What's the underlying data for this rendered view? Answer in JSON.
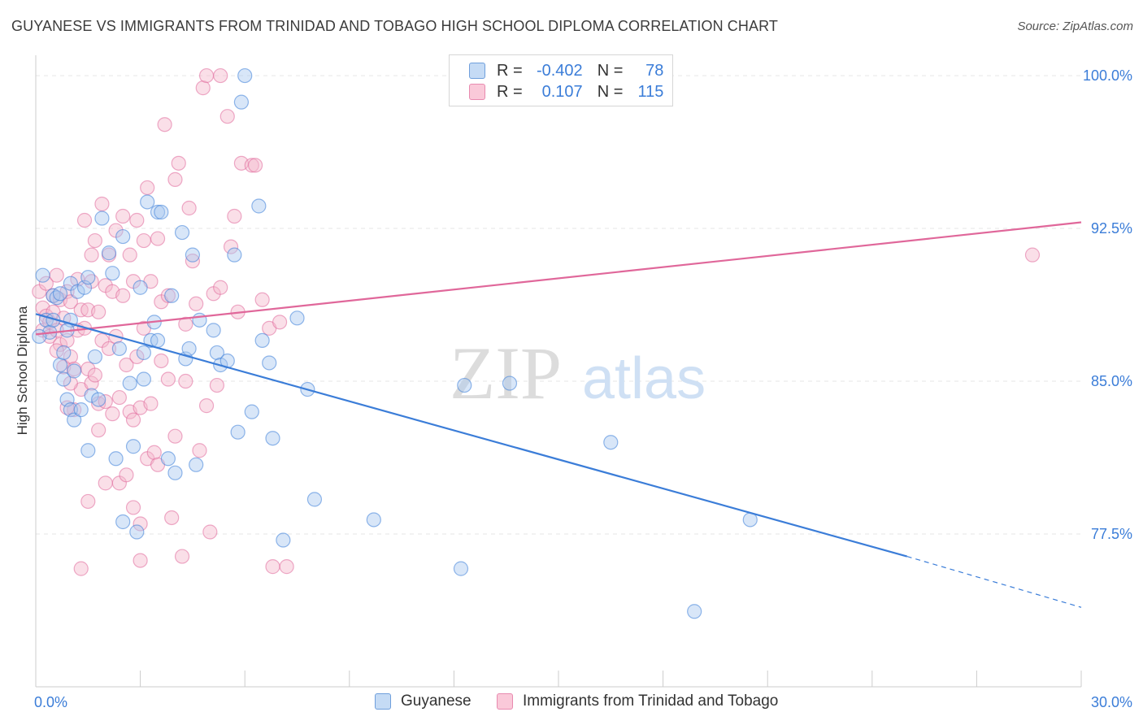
{
  "header": {
    "title": "GUYANESE VS IMMIGRANTS FROM TRINIDAD AND TOBAGO HIGH SCHOOL DIPLOMA CORRELATION CHART",
    "source": "Source: ZipAtlas.com"
  },
  "stats_legend": {
    "rows": [
      {
        "r_label": "R =",
        "r_value": "-0.402",
        "n_label": "N =",
        "n_value": "78",
        "color": "#8fb8e8"
      },
      {
        "r_label": "R =",
        "r_value": "0.107",
        "n_label": "N =",
        "n_value": "115",
        "color": "#f2a6c0"
      }
    ]
  },
  "watermark": {
    "part1": "ZIP",
    "part2": "atlas"
  },
  "chart_data": {
    "type": "scatter",
    "title": "GUYANESE VS IMMIGRANTS FROM TRINIDAD AND TOBAGO HIGH SCHOOL DIPLOMA CORRELATION CHART",
    "xlabel": "",
    "ylabel": "High School Diploma",
    "xlim": [
      0,
      30
    ],
    "ylim": [
      70.0,
      101.0
    ],
    "x_tick_labels": [
      "0.0%",
      "30.0%"
    ],
    "y_ticks": [
      77.5,
      85.0,
      92.5,
      100.0
    ],
    "y_tick_labels": [
      "77.5%",
      "85.0%",
      "92.5%",
      "100.0%"
    ],
    "grid": true,
    "legend_position": "bottom",
    "series": [
      {
        "name": "Guyanese",
        "color": "#3b7dd8",
        "fill": "#a9c8ef",
        "trend": {
          "x": [
            0,
            25
          ],
          "y": [
            88.3,
            76.4
          ],
          "dashed_to": [
            30,
            73.9
          ]
        },
        "points": [
          [
            0.2,
            90.2
          ],
          [
            0.3,
            88.0
          ],
          [
            0.4,
            87.4
          ],
          [
            0.5,
            89.2
          ],
          [
            0.5,
            88.0
          ],
          [
            0.6,
            89.1
          ],
          [
            0.7,
            89.3
          ],
          [
            0.7,
            85.8
          ],
          [
            0.8,
            86.4
          ],
          [
            0.8,
            85.1
          ],
          [
            0.9,
            84.1
          ],
          [
            1.0,
            89.8
          ],
          [
            1.0,
            88.0
          ],
          [
            1.0,
            83.6
          ],
          [
            1.1,
            83.1
          ],
          [
            1.1,
            85.5
          ],
          [
            1.2,
            89.4
          ],
          [
            1.3,
            83.6
          ],
          [
            1.4,
            89.6
          ],
          [
            1.5,
            90.1
          ],
          [
            1.5,
            81.6
          ],
          [
            1.6,
            84.3
          ],
          [
            1.7,
            86.2
          ],
          [
            1.8,
            84.1
          ],
          [
            1.9,
            93.0
          ],
          [
            2.1,
            91.3
          ],
          [
            2.2,
            90.3
          ],
          [
            2.3,
            81.2
          ],
          [
            2.4,
            86.6
          ],
          [
            2.5,
            92.1
          ],
          [
            2.5,
            78.1
          ],
          [
            2.7,
            84.9
          ],
          [
            2.8,
            81.8
          ],
          [
            2.9,
            77.6
          ],
          [
            3.0,
            89.6
          ],
          [
            3.1,
            86.4
          ],
          [
            3.2,
            93.8
          ],
          [
            3.3,
            87.0
          ],
          [
            3.4,
            87.9
          ],
          [
            3.5,
            87.0
          ],
          [
            3.5,
            93.3
          ],
          [
            3.6,
            93.3
          ],
          [
            3.8,
            81.2
          ],
          [
            3.9,
            89.2
          ],
          [
            4.0,
            80.5
          ],
          [
            4.2,
            92.3
          ],
          [
            4.3,
            86.1
          ],
          [
            4.4,
            86.6
          ],
          [
            4.5,
            91.2
          ],
          [
            4.6,
            80.9
          ],
          [
            4.7,
            88.0
          ],
          [
            5.1,
            87.5
          ],
          [
            5.2,
            86.4
          ],
          [
            5.3,
            85.8
          ],
          [
            5.5,
            86.0
          ],
          [
            5.7,
            91.2
          ],
          [
            5.8,
            82.5
          ],
          [
            5.9,
            98.7
          ],
          [
            6.0,
            100.0
          ],
          [
            6.2,
            83.5
          ],
          [
            6.4,
            93.6
          ],
          [
            6.5,
            87.0
          ],
          [
            6.7,
            85.9
          ],
          [
            6.8,
            82.2
          ],
          [
            7.1,
            77.2
          ],
          [
            7.5,
            88.1
          ],
          [
            7.8,
            84.6
          ],
          [
            8.0,
            79.2
          ],
          [
            9.7,
            78.2
          ],
          [
            12.2,
            75.8
          ],
          [
            12.3,
            84.8
          ],
          [
            13.6,
            84.9
          ],
          [
            16.5,
            82.0
          ],
          [
            18.9,
            73.7
          ],
          [
            20.5,
            78.2
          ],
          [
            0.1,
            87.2
          ],
          [
            0.9,
            87.5
          ],
          [
            3.1,
            85.1
          ]
        ]
      },
      {
        "name": "Immigrants from Trinidad and Tobago",
        "color": "#e0679a",
        "fill": "#f5b8cd",
        "trend": {
          "x": [
            0,
            30
          ],
          "y": [
            87.3,
            92.8
          ]
        },
        "points": [
          [
            0.1,
            89.4
          ],
          [
            0.2,
            88.6
          ],
          [
            0.2,
            87.5
          ],
          [
            0.3,
            89.8
          ],
          [
            0.3,
            88.2
          ],
          [
            0.4,
            87.9
          ],
          [
            0.4,
            87.2
          ],
          [
            0.5,
            89.2
          ],
          [
            0.5,
            88.4
          ],
          [
            0.6,
            90.2
          ],
          [
            0.6,
            87.5
          ],
          [
            0.7,
            89.0
          ],
          [
            0.7,
            86.8
          ],
          [
            0.8,
            88.1
          ],
          [
            0.8,
            85.7
          ],
          [
            0.9,
            89.4
          ],
          [
            0.9,
            87.0
          ],
          [
            1.0,
            88.9
          ],
          [
            1.0,
            86.2
          ],
          [
            1.1,
            85.6
          ],
          [
            1.1,
            83.6
          ],
          [
            1.2,
            90.0
          ],
          [
            1.2,
            87.5
          ],
          [
            1.3,
            88.5
          ],
          [
            1.3,
            84.6
          ],
          [
            1.4,
            92.9
          ],
          [
            1.4,
            87.6
          ],
          [
            1.5,
            88.5
          ],
          [
            1.5,
            85.6
          ],
          [
            1.6,
            89.9
          ],
          [
            1.6,
            84.9
          ],
          [
            1.7,
            91.9
          ],
          [
            1.7,
            85.3
          ],
          [
            1.8,
            88.4
          ],
          [
            1.8,
            83.9
          ],
          [
            1.9,
            93.7
          ],
          [
            1.9,
            87.0
          ],
          [
            2.0,
            89.7
          ],
          [
            2.0,
            84.0
          ],
          [
            2.1,
            91.2
          ],
          [
            2.1,
            86.6
          ],
          [
            2.2,
            89.4
          ],
          [
            2.2,
            83.4
          ],
          [
            2.3,
            92.4
          ],
          [
            2.3,
            87.2
          ],
          [
            2.4,
            80.0
          ],
          [
            2.4,
            84.2
          ],
          [
            2.5,
            93.1
          ],
          [
            2.5,
            89.2
          ],
          [
            2.6,
            80.4
          ],
          [
            2.6,
            85.8
          ],
          [
            2.7,
            91.2
          ],
          [
            2.7,
            83.5
          ],
          [
            2.8,
            89.9
          ],
          [
            2.8,
            83.1
          ],
          [
            2.9,
            92.9
          ],
          [
            2.9,
            86.2
          ],
          [
            3.0,
            83.7
          ],
          [
            3.0,
            78.0
          ],
          [
            3.1,
            91.9
          ],
          [
            3.1,
            87.6
          ],
          [
            3.2,
            94.5
          ],
          [
            3.2,
            81.2
          ],
          [
            3.3,
            89.9
          ],
          [
            3.3,
            83.9
          ],
          [
            3.4,
            81.5
          ],
          [
            3.5,
            92.0
          ],
          [
            3.6,
            88.9
          ],
          [
            3.6,
            86.0
          ],
          [
            3.7,
            97.6
          ],
          [
            3.8,
            89.2
          ],
          [
            3.8,
            85.1
          ],
          [
            3.9,
            78.3
          ],
          [
            4.0,
            94.9
          ],
          [
            4.0,
            82.3
          ],
          [
            4.1,
            95.7
          ],
          [
            4.2,
            76.4
          ],
          [
            4.3,
            85.0
          ],
          [
            4.3,
            87.8
          ],
          [
            4.4,
            93.5
          ],
          [
            4.5,
            90.9
          ],
          [
            4.6,
            88.8
          ],
          [
            4.7,
            81.6
          ],
          [
            4.8,
            99.4
          ],
          [
            4.9,
            100.0
          ],
          [
            5.0,
            77.6
          ],
          [
            5.1,
            89.3
          ],
          [
            5.2,
            84.8
          ],
          [
            5.3,
            100.0
          ],
          [
            5.3,
            89.6
          ],
          [
            5.5,
            98.0
          ],
          [
            5.6,
            91.6
          ],
          [
            5.7,
            93.1
          ],
          [
            5.8,
            88.4
          ],
          [
            5.9,
            95.7
          ],
          [
            6.2,
            95.6
          ],
          [
            6.3,
            95.6
          ],
          [
            6.5,
            89.0
          ],
          [
            6.7,
            87.6
          ],
          [
            6.8,
            75.9
          ],
          [
            7.0,
            87.9
          ],
          [
            7.2,
            75.9
          ],
          [
            28.6,
            91.2
          ],
          [
            1.3,
            75.8
          ],
          [
            3.0,
            76.2
          ],
          [
            4.9,
            83.8
          ],
          [
            1.6,
            91.2
          ],
          [
            2.0,
            80.0
          ],
          [
            0.6,
            86.5
          ],
          [
            1.0,
            84.9
          ],
          [
            2.8,
            78.8
          ],
          [
            3.5,
            80.9
          ],
          [
            0.9,
            83.7
          ],
          [
            1.8,
            82.6
          ],
          [
            1.5,
            79.1
          ]
        ]
      }
    ]
  }
}
